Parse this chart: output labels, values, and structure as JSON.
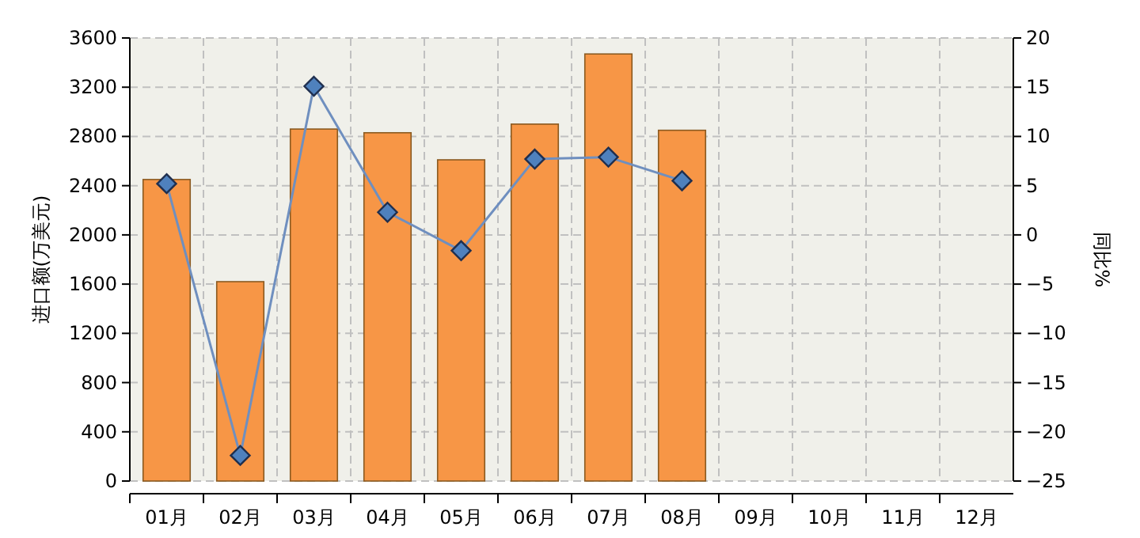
{
  "chart_data": {
    "type": "bar",
    "categories": [
      "01月",
      "02月",
      "03月",
      "04月",
      "05月",
      "06月",
      "07月",
      "08月",
      "09月",
      "10月",
      "11月",
      "12月"
    ],
    "series": [
      {
        "color": "#f79646",
        "values": [
          2450,
          1620,
          2860,
          2830,
          2610,
          2900,
          3470,
          2850,
          null,
          null,
          null,
          null
        ]
      },
      {
        "type": "line",
        "axis": "y2",
        "color": "#6f8fbf",
        "values": [
          5.2,
          -22.4,
          15.1,
          2.3,
          -1.6,
          7.7,
          7.9,
          5.5,
          null,
          null,
          null,
          null
        ]
      }
    ],
    "ylabel": "进口额(万美元)",
    "y2label": "同比%",
    "ylim": [
      0,
      3600
    ],
    "yticks": [
      0,
      400,
      800,
      1200,
      1600,
      2000,
      2400,
      2800,
      3200,
      3600
    ],
    "y2lim": [
      -25,
      20
    ],
    "y2ticks": [
      -25,
      -20,
      -15,
      -10,
      -5,
      0,
      5,
      10,
      15,
      20
    ],
    "grid": true,
    "marker": "diamond"
  }
}
